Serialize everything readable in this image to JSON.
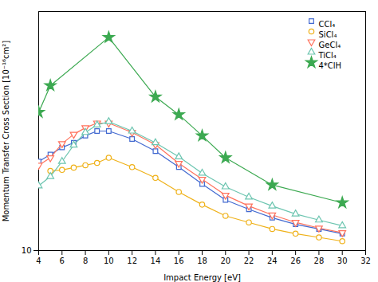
{
  "chart_data": {
    "type": "line",
    "xlabel": "Impact Energy [eV]",
    "ylabel": "Momentum Transfer Cross Section [10⁻¹⁶cm²]",
    "xlim": [
      4,
      32
    ],
    "xticks": [
      4,
      6,
      8,
      10,
      12,
      14,
      16,
      18,
      20,
      22,
      24,
      26,
      28,
      30,
      32
    ],
    "ylim": [
      10,
      520
    ],
    "yticks": [
      10
    ],
    "grid": false,
    "legend": "upper right",
    "series": [
      {
        "name": "CCl₄",
        "marker": "square",
        "x": [
          4,
          5,
          6,
          7,
          8,
          9,
          10,
          12,
          14,
          16,
          18,
          20,
          22,
          24,
          26,
          28,
          30
        ],
        "values": [
          200,
          215,
          230,
          240,
          255,
          265,
          265,
          248,
          222,
          188,
          152,
          118,
          98,
          80,
          66,
          56,
          46
        ]
      },
      {
        "name": "SiCl₄",
        "marker": "circle",
        "x": [
          5,
          6,
          7,
          8,
          9,
          10,
          12,
          14,
          16,
          18,
          20,
          22,
          24,
          26,
          28,
          30
        ],
        "values": [
          180,
          182,
          187,
          192,
          197,
          208,
          188,
          165,
          135,
          108,
          84,
          70,
          56,
          46,
          38,
          30
        ]
      },
      {
        "name": "GeCl₄",
        "marker": "triangle-down",
        "x": [
          4,
          5,
          6,
          7,
          8,
          9,
          10,
          12,
          14,
          16,
          18,
          20,
          22,
          24,
          26,
          28,
          30
        ],
        "values": [
          192,
          208,
          238,
          258,
          272,
          282,
          282,
          262,
          236,
          196,
          162,
          128,
          105,
          86,
          70,
          58,
          48
        ]
      },
      {
        "name": "TiCl₄",
        "marker": "triangle-up",
        "x": [
          4,
          5,
          6,
          7,
          8,
          9,
          10,
          12,
          14,
          16,
          18,
          20,
          22,
          24,
          26,
          28,
          30
        ],
        "values": [
          148,
          168,
          200,
          235,
          262,
          278,
          285,
          265,
          240,
          210,
          175,
          146,
          124,
          105,
          88,
          75,
          63
        ]
      },
      {
        "name": "4*ClH",
        "marker": "star",
        "x": [
          4,
          5,
          10,
          14,
          16,
          18,
          20,
          24,
          30
        ],
        "values": [
          305,
          362,
          465,
          338,
          300,
          255,
          208,
          150,
          112
        ]
      }
    ]
  }
}
